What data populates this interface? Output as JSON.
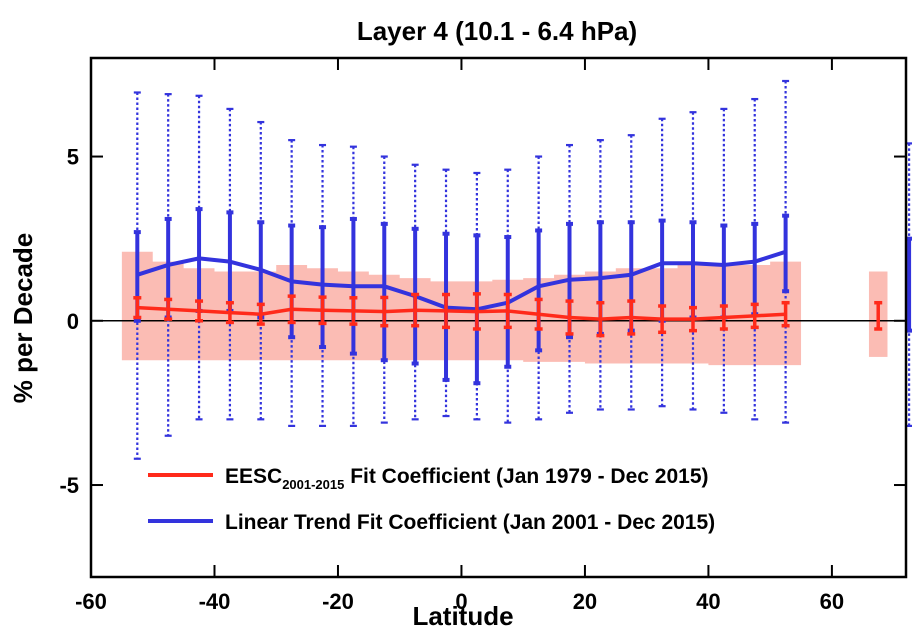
{
  "chart_data": {
    "type": "line",
    "title": "Layer 4 (10.1 - 6.4 hPa)",
    "xlabel": "Latitude",
    "ylabel": "% per Decade",
    "xlim": [
      -60,
      72
    ],
    "ylim": [
      -7.8,
      8.0
    ],
    "xticks": [
      -60,
      -40,
      -20,
      0,
      20,
      40,
      60
    ],
    "xtick_labels": [
      "-60",
      "-40",
      "-20",
      "0",
      "20",
      "40",
      "60"
    ],
    "yticks": [
      -5,
      0,
      5
    ],
    "ytick_labels": [
      "-5",
      "0",
      "5"
    ],
    "zero_line": true,
    "grid": false,
    "legend": {
      "placement": "bottom-right",
      "entries": [
        {
          "prefix": "EESC",
          "subscript": "2001-2015",
          "suffix": " Fit Coefficient (Jan 1979 - Dec 2015)",
          "color": "#ff2a1a"
        },
        {
          "prefix": "Linear Trend Fit Coefficient (Jan 2001 - Dec 2015)",
          "subscript": "",
          "suffix": "",
          "color": "#3333dd"
        }
      ]
    },
    "series": [
      {
        "key": "eesc",
        "color": "#ff2a1a",
        "band_color": "#fbbcb4",
        "x": [
          -52.5,
          -47.5,
          -42.5,
          -37.5,
          -32.5,
          -27.5,
          -22.5,
          -17.5,
          -12.5,
          -7.5,
          -2.5,
          2.5,
          7.5,
          12.5,
          17.5,
          22.5,
          27.5,
          32.5,
          37.5,
          42.5,
          47.5,
          52.5
        ],
        "values": [
          0.4,
          0.35,
          0.3,
          0.25,
          0.2,
          0.35,
          0.32,
          0.3,
          0.28,
          0.32,
          0.3,
          0.28,
          0.3,
          0.2,
          0.1,
          0.05,
          0.1,
          0.05,
          0.05,
          0.1,
          0.15,
          0.2
        ],
        "err_low": [
          0.1,
          0.05,
          0.0,
          -0.05,
          -0.1,
          -0.05,
          -0.08,
          -0.1,
          -0.15,
          -0.15,
          -0.2,
          -0.25,
          -0.2,
          -0.25,
          -0.4,
          -0.45,
          -0.4,
          -0.35,
          -0.3,
          -0.25,
          -0.2,
          -0.15
        ],
        "err_high": [
          0.7,
          0.65,
          0.6,
          0.55,
          0.5,
          0.75,
          0.72,
          0.7,
          0.71,
          0.8,
          0.8,
          0.82,
          0.8,
          0.65,
          0.6,
          0.55,
          0.6,
          0.45,
          0.4,
          0.45,
          0.5,
          0.55
        ],
        "band_low": [
          -1.2,
          -1.2,
          -1.2,
          -1.2,
          -1.2,
          -1.2,
          -1.2,
          -1.2,
          -1.2,
          -1.2,
          -1.2,
          -1.2,
          -1.2,
          -1.25,
          -1.25,
          -1.3,
          -1.3,
          -1.3,
          -1.3,
          -1.35,
          -1.35,
          -1.35
        ],
        "band_high": [
          2.1,
          1.8,
          1.6,
          1.5,
          1.5,
          1.7,
          1.6,
          1.5,
          1.4,
          1.3,
          1.2,
          1.2,
          1.25,
          1.3,
          1.4,
          1.5,
          1.6,
          1.6,
          1.7,
          1.7,
          1.7,
          1.8
        ],
        "extra_point": {
          "x": 67.5,
          "value": 0.05,
          "err_low": -0.25,
          "err_high": 0.55,
          "band_low": -1.1,
          "band_high": 1.5
        }
      },
      {
        "key": "linear",
        "color": "#3333dd",
        "x": [
          -52.5,
          -47.5,
          -42.5,
          -37.5,
          -32.5,
          -27.5,
          -22.5,
          -17.5,
          -12.5,
          -7.5,
          -2.5,
          2.5,
          7.5,
          12.5,
          17.5,
          22.5,
          27.5,
          32.5,
          37.5,
          42.5,
          47.5,
          52.5
        ],
        "values": [
          1.4,
          1.7,
          1.9,
          1.8,
          1.55,
          1.2,
          1.1,
          1.05,
          1.05,
          0.75,
          0.4,
          0.35,
          0.55,
          1.05,
          1.25,
          1.3,
          1.4,
          1.75,
          1.75,
          1.7,
          1.8,
          2.1
        ],
        "inner_low": [
          0.0,
          0.1,
          0.3,
          0.3,
          0.1,
          -0.5,
          -0.8,
          -1.0,
          -1.2,
          -1.3,
          -1.8,
          -1.9,
          -1.4,
          -0.9,
          -0.5,
          -0.4,
          -0.3,
          0.0,
          0.1,
          0.1,
          0.2,
          0.9
        ],
        "inner_high": [
          2.7,
          3.1,
          3.4,
          3.3,
          3.0,
          2.9,
          2.85,
          3.1,
          2.95,
          2.8,
          2.65,
          2.6,
          2.55,
          2.75,
          2.95,
          3.0,
          3.0,
          3.05,
          3.0,
          2.9,
          2.95,
          3.2
        ],
        "outer_low": [
          -4.2,
          -3.5,
          -3.0,
          -3.0,
          -3.0,
          -3.2,
          -3.2,
          -3.2,
          -3.1,
          -3.0,
          -2.9,
          -3.0,
          -3.1,
          -3.0,
          -2.8,
          -2.7,
          -2.7,
          -2.6,
          -2.7,
          -2.8,
          -3.0,
          -3.1
        ],
        "outer_high": [
          6.95,
          6.9,
          6.85,
          6.45,
          6.05,
          5.5,
          5.35,
          5.3,
          5.0,
          4.75,
          4.6,
          4.5,
          4.6,
          5.0,
          5.35,
          5.5,
          5.65,
          6.15,
          6.35,
          6.45,
          6.75,
          7.3
        ],
        "extra_point": {
          "x": 72.5,
          "value": 2.5,
          "inner_low": -0.3,
          "inner_high": 2.5,
          "outer_low": -3.2,
          "outer_high": 5.4
        }
      }
    ]
  }
}
